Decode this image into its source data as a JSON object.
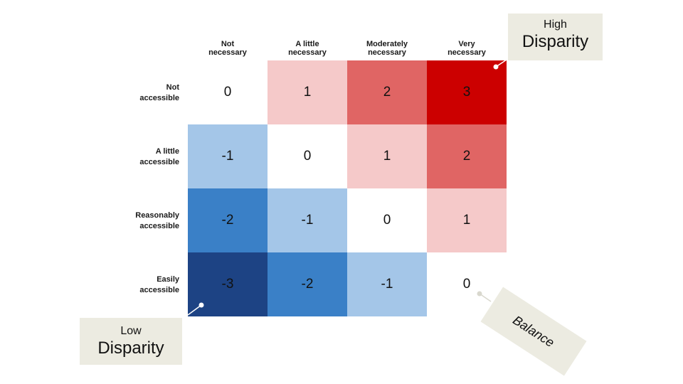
{
  "chart_data": {
    "type": "heatmap",
    "x_categories": [
      "Not necessary",
      "A little necessary",
      "Moderately necessary",
      "Very necessary"
    ],
    "y_categories": [
      "Not accessible",
      "A little accessible",
      "Reasonably accessible",
      "Easily accessible"
    ],
    "values": [
      [
        0,
        1,
        2,
        3
      ],
      [
        -1,
        0,
        1,
        2
      ],
      [
        -2,
        -1,
        0,
        1
      ],
      [
        -3,
        -2,
        -1,
        0
      ]
    ],
    "value_labels": [
      [
        "0",
        "1",
        "2",
        "3"
      ],
      [
        "-1",
        "0",
        "1",
        "2"
      ],
      [
        "-2",
        "-1",
        "0",
        "1"
      ],
      [
        "-3",
        "-2",
        "-1",
        "0"
      ]
    ],
    "color_scale": {
      "-3": "#1d4384",
      "-2": "#3a80c7",
      "-1": "#a4c6e8",
      "0": "#ffffff",
      "1": "#f5c9c9",
      "2": "#e06564",
      "3": "#cc0000"
    },
    "annotations": {
      "high": {
        "line1": "High",
        "line2": "Disparity"
      },
      "low": {
        "line1": "Low",
        "line2": "Disparity"
      },
      "balance": "Balance"
    }
  },
  "column_headers": [
    {
      "line1": "Not",
      "line2": "necessary"
    },
    {
      "line1": "A little",
      "line2": "necessary"
    },
    {
      "line1": "Moderately",
      "line2": "necessary"
    },
    {
      "line1": "Very",
      "line2": "necessary"
    }
  ],
  "row_headers": [
    {
      "line1": "Not",
      "line2": "accessible"
    },
    {
      "line1": "A little",
      "line2": "accessible"
    },
    {
      "line1": "Reasonably",
      "line2": "accessible"
    },
    {
      "line1": "Easily",
      "line2": "accessible"
    }
  ],
  "callout_colors": {
    "background": "#ecebe1",
    "pointer": "#ffffff"
  }
}
